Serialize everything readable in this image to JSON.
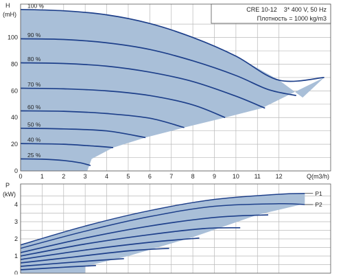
{
  "chart_data": [
    {
      "type": "line",
      "title": "",
      "xlabel": "Q(m3/h)",
      "ylabel": "(mH)",
      "y_axis_symbol": "H",
      "xlim": [
        0,
        14.4
      ],
      "ylim": [
        0,
        125
      ],
      "xticks": [
        0,
        1,
        2,
        3,
        4,
        5,
        6,
        7,
        8,
        9,
        10,
        11,
        12
      ],
      "yticks": [
        0,
        20,
        40,
        60,
        80,
        100
      ],
      "grid": true,
      "info_box": {
        "line1": "CRE 10-12    3* 400 V, 50 Hz",
        "line2": "Плотность = 1000 kg/m3"
      },
      "operating_area": {
        "color": "#a9bfd8",
        "boundary": [
          [
            0,
            0
          ],
          [
            0,
            121
          ],
          [
            2,
            120
          ],
          [
            4,
            117
          ],
          [
            6,
            110.5
          ],
          [
            8,
            100
          ],
          [
            10,
            86
          ],
          [
            12,
            68
          ],
          [
            13.1,
            55
          ],
          [
            14.1,
            70
          ],
          [
            11.2,
            47
          ],
          [
            9.5,
            40
          ],
          [
            7.6,
            32.5
          ],
          [
            5.8,
            25
          ],
          [
            4.3,
            17.5
          ],
          [
            3.3,
            9
          ],
          [
            3.1,
            0
          ]
        ]
      },
      "line_color": "#1d3f8a",
      "series": [
        {
          "name": "100 %",
          "x": [
            0,
            2,
            4,
            6,
            8,
            10,
            12,
            14.1
          ],
          "y": [
            121,
            120,
            117,
            110.5,
            100,
            86,
            68,
            70
          ]
        },
        {
          "name": "90 %",
          "x": [
            0,
            2,
            4,
            6,
            8,
            10,
            11.5,
            12.8
          ],
          "y": [
            99,
            98.5,
            96,
            91,
            82.5,
            71.5,
            61,
            56.5
          ]
        },
        {
          "name": "80 %",
          "x": [
            0,
            2,
            4,
            6,
            8,
            10,
            11.35
          ],
          "y": [
            81,
            80.5,
            78.5,
            74,
            67,
            56,
            47
          ]
        },
        {
          "name": "70 %",
          "x": [
            0,
            2,
            4,
            6,
            8,
            9.5
          ],
          "y": [
            62,
            61.5,
            60,
            56.5,
            49.5,
            40
          ]
        },
        {
          "name": "60 %",
          "x": [
            0,
            2,
            4,
            6,
            7.6
          ],
          "y": [
            45,
            44.7,
            43,
            39.5,
            32.5
          ]
        },
        {
          "name": "50 %",
          "x": [
            0,
            2,
            4,
            5.8
          ],
          "y": [
            32,
            31.5,
            30,
            25
          ]
        },
        {
          "name": "40 %",
          "x": [
            0,
            2,
            3.5,
            4.3
          ],
          "y": [
            20.5,
            20,
            18.5,
            17.5
          ]
        },
        {
          "name": "25 %",
          "x": [
            0,
            1,
            2,
            2.8,
            3.25
          ],
          "y": [
            9,
            8.8,
            7.8,
            6,
            4
          ]
        }
      ]
    },
    {
      "type": "line",
      "title": "",
      "xlabel": "",
      "ylabel": "(kW)",
      "y_axis_symbol": "P",
      "xlim": [
        0,
        14.4
      ],
      "ylim": [
        0,
        5.2
      ],
      "yticks": [
        0,
        1,
        2,
        3,
        4
      ],
      "grid": true,
      "operating_area": {
        "color": "#a9bfd8",
        "boundary": [
          [
            0,
            1.65
          ],
          [
            3,
            2.75
          ],
          [
            6,
            3.65
          ],
          [
            9,
            4.3
          ],
          [
            12,
            4.6
          ],
          [
            13.2,
            4.65
          ],
          [
            13.2,
            4.05
          ],
          [
            11,
            3.4
          ],
          [
            8,
            2.1
          ],
          [
            5,
            1.0
          ],
          [
            3,
            0.4
          ],
          [
            3,
            0.0
          ],
          [
            0,
            0.0
          ]
        ]
      },
      "line_color": "#1d3f8a",
      "series": [
        {
          "name": "P1",
          "x": [
            0,
            3,
            6,
            9,
            12,
            13.2
          ],
          "y": [
            1.65,
            2.75,
            3.65,
            4.3,
            4.6,
            4.65
          ]
        },
        {
          "name": "P2",
          "x": [
            0,
            3,
            6,
            9,
            12,
            13.2
          ],
          "y": [
            1.45,
            2.45,
            3.3,
            3.9,
            4.05,
            4.0
          ]
        },
        {
          "name": "",
          "x": [
            0,
            3,
            6,
            9,
            11.5
          ],
          "y": [
            1.2,
            2.05,
            2.75,
            3.25,
            3.4
          ]
        },
        {
          "name": "",
          "x": [
            0,
            3,
            6,
            8.5,
            10.2
          ],
          "y": [
            1.0,
            1.7,
            2.25,
            2.6,
            2.65
          ]
        },
        {
          "name": "",
          "x": [
            0,
            3,
            6,
            8.3
          ],
          "y": [
            0.8,
            1.35,
            1.8,
            2.05
          ]
        },
        {
          "name": "",
          "x": [
            0,
            2.5,
            5,
            6.9
          ],
          "y": [
            0.6,
            0.95,
            1.3,
            1.45
          ]
        },
        {
          "name": "",
          "x": [
            0,
            2.5,
            4.8
          ],
          "y": [
            0.4,
            0.65,
            0.85
          ]
        },
        {
          "name": "",
          "x": [
            0,
            2,
            3.5
          ],
          "y": [
            0.2,
            0.35,
            0.45
          ]
        }
      ]
    }
  ]
}
